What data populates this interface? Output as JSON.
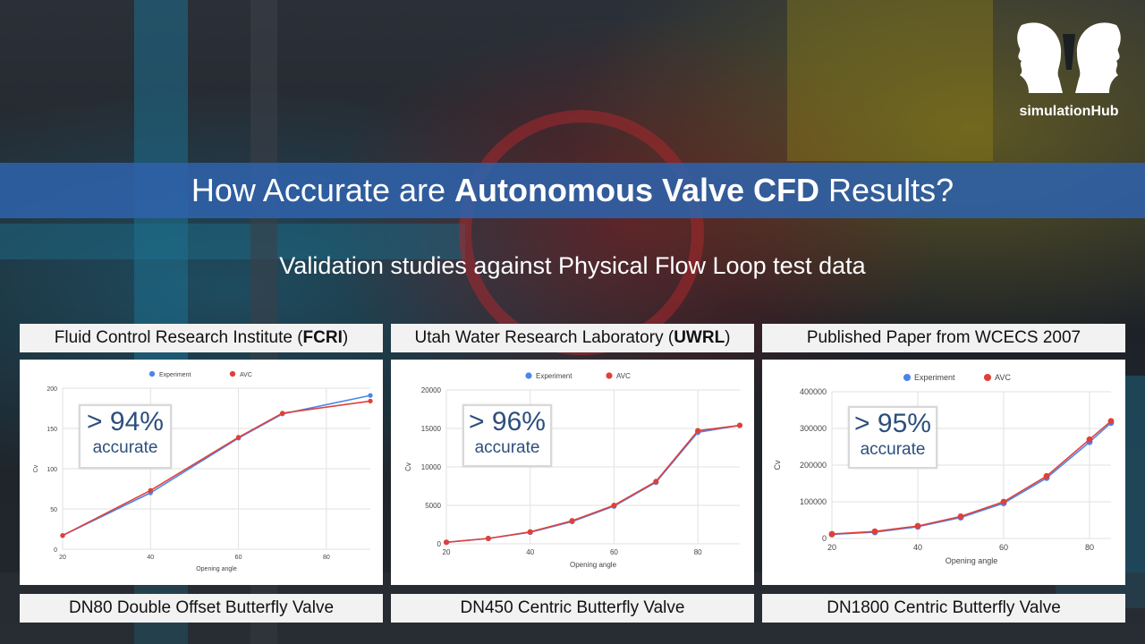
{
  "logo": {
    "text": "simulationHub"
  },
  "banner": {
    "prefix": "How Accurate are ",
    "bold": "Autonomous Valve CFD",
    "suffix": " Results?"
  },
  "subtitle": "Validation studies against Physical Flow Loop test data",
  "panels": [
    {
      "source_prefix": "Fluid Control Research Institute (",
      "source_bold": "FCRI",
      "source_suffix": ")",
      "valve": "DN80 Double Offset Butterfly Valve",
      "accuracy_value": "> 94%",
      "accuracy_word": "accurate"
    },
    {
      "source_prefix": "Utah Water Research Laboratory (",
      "source_bold": "UWRL",
      "source_suffix": ")",
      "valve": "DN450 Centric Butterfly Valve",
      "accuracy_value": "> 96%",
      "accuracy_word": "accurate"
    },
    {
      "source_prefix": "Published Paper from WCECS 2007",
      "source_bold": "",
      "source_suffix": "",
      "valve": "DN1800 Centric Butterfly Valve",
      "accuracy_value": "> 95%",
      "accuracy_word": "accurate"
    }
  ],
  "colors": {
    "experiment": "#4a86e8",
    "avc": "#e0403a",
    "banner": "#2f62aa"
  },
  "chart_data": [
    {
      "type": "line",
      "xlabel": "Opening angle",
      "ylabel": "Cv",
      "xlim": [
        20,
        90
      ],
      "ylim": [
        0,
        200
      ],
      "xticks": [
        20,
        40,
        60,
        80
      ],
      "yticks": [
        0,
        50,
        100,
        150,
        200
      ],
      "legend": "top",
      "series": [
        {
          "name": "Experiment",
          "x": [
            20,
            40,
            60,
            70,
            90
          ],
          "y": [
            17,
            70,
            138,
            168,
            191
          ]
        },
        {
          "name": "AVC",
          "x": [
            20,
            40,
            60,
            70,
            90
          ],
          "y": [
            17,
            73,
            139,
            169,
            184
          ]
        }
      ]
    },
    {
      "type": "line",
      "xlabel": "Opening angle",
      "ylabel": "Cv",
      "xlim": [
        20,
        90
      ],
      "ylim": [
        0,
        20000
      ],
      "xticks": [
        20,
        40,
        60,
        80
      ],
      "yticks": [
        0,
        5000,
        10000,
        15000,
        20000
      ],
      "legend": "top",
      "series": [
        {
          "name": "Experiment",
          "x": [
            20,
            30,
            40,
            50,
            60,
            70,
            80,
            90
          ],
          "y": [
            200,
            700,
            1500,
            2900,
            4900,
            8000,
            14500,
            15400
          ]
        },
        {
          "name": "AVC",
          "x": [
            20,
            30,
            40,
            50,
            60,
            70,
            80,
            90
          ],
          "y": [
            200,
            700,
            1550,
            3000,
            5000,
            8100,
            14700,
            15400
          ]
        }
      ]
    },
    {
      "type": "line",
      "xlabel": "Opening angle",
      "ylabel": "Cv",
      "xlim": [
        20,
        85
      ],
      "ylim": [
        0,
        400000
      ],
      "xticks": [
        20,
        40,
        60,
        80
      ],
      "yticks": [
        0,
        100000,
        200000,
        300000,
        400000
      ],
      "legend": "top",
      "series": [
        {
          "name": "Experiment",
          "x": [
            20,
            30,
            40,
            50,
            60,
            70,
            80,
            85
          ],
          "y": [
            11000,
            17000,
            32000,
            57000,
            96000,
            165000,
            263000,
            315000
          ]
        },
        {
          "name": "AVC",
          "x": [
            20,
            30,
            40,
            50,
            60,
            70,
            80,
            85
          ],
          "y": [
            12000,
            19000,
            34000,
            60000,
            100000,
            170000,
            270000,
            320000
          ]
        }
      ]
    }
  ]
}
